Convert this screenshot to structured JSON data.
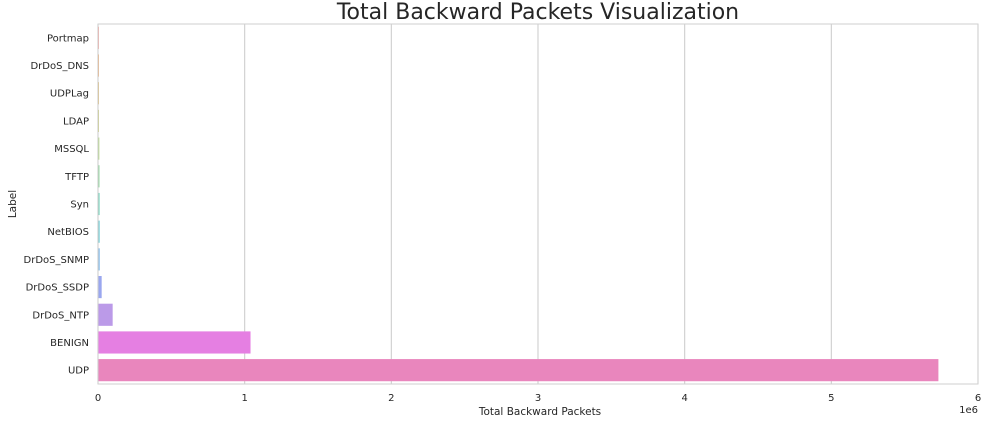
{
  "chart_data": {
    "type": "bar",
    "orientation": "horizontal",
    "title": "Total Backward Packets Visualization",
    "xlabel": "Total Backward Packets",
    "ylabel": "Label",
    "x_offset_label": "1e6",
    "xlim": [
      0,
      6000000
    ],
    "xticks": [
      0,
      1000000,
      2000000,
      3000000,
      4000000,
      5000000,
      6000000
    ],
    "xtick_labels": [
      "0",
      "1",
      "2",
      "3",
      "4",
      "5",
      "6"
    ],
    "grid": "vertical",
    "categories": [
      "Portmap",
      "DrDoS_DNS",
      "UDPLag",
      "LDAP",
      "MSSQL",
      "TFTP",
      "Syn",
      "NetBIOS",
      "DrDoS_SNMP",
      "DrDoS_SSDP",
      "DrDoS_NTP",
      "BENIGN",
      "UDP"
    ],
    "values": [
      1500,
      2500,
      3000,
      5000,
      9000,
      10000,
      11000,
      11500,
      12000,
      25000,
      100000,
      1040000,
      5730000
    ],
    "colors": [
      "#f8a8a3",
      "#f0b27a",
      "#e3c07a",
      "#cfd07e",
      "#b6d98a",
      "#94d7a2",
      "#7fd6c0",
      "#7ccfd6",
      "#8dbfe8",
      "#9aa7ef",
      "#bb9ae8",
      "#e57fe2",
      "#e986bd"
    ]
  }
}
